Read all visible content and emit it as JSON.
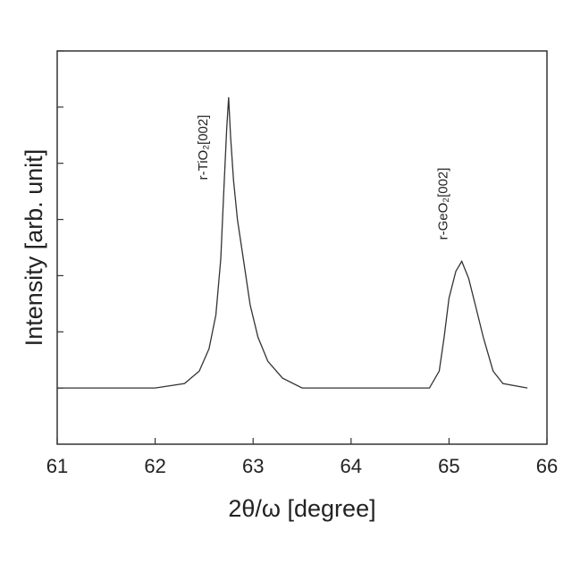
{
  "chart_data": {
    "type": "line",
    "xlabel": "2θ/ω [degree]",
    "ylabel": "Intensity [arb. unit]",
    "xlim": [
      61,
      66
    ],
    "xticks": [
      61,
      62,
      63,
      64,
      65,
      66
    ],
    "ylim": [
      0.1,
      1000000
    ],
    "yticks": [
      1,
      10,
      100,
      1000,
      10000,
      100000,
      1000000
    ],
    "ylog": true,
    "ytick_labels_shown": false,
    "series": [
      {
        "color": "#333333",
        "x": [
          61.0,
          62.0,
          62.3,
          62.45,
          62.55,
          62.62,
          62.67,
          62.7,
          62.73,
          62.75,
          62.77,
          62.8,
          62.84,
          62.9,
          62.97,
          63.05,
          63.15,
          63.3,
          63.5,
          64.8,
          64.9,
          64.95,
          65.0,
          65.07,
          65.13,
          65.2,
          65.28,
          65.35,
          65.45,
          65.55,
          65.8
        ],
        "values": [
          1,
          1,
          1.2,
          2,
          5,
          20,
          200,
          3000,
          40000,
          150000,
          30000,
          5000,
          1000,
          200,
          30,
          8,
          3,
          1.5,
          1,
          1,
          2,
          8,
          40,
          120,
          180,
          90,
          25,
          8,
          2,
          1.2,
          1
        ]
      }
    ],
    "annotations": [
      {
        "text": "r-TiO₂[002]",
        "x": 62.75
      },
      {
        "text": "r-GeO₂[002]",
        "x": 65.13
      }
    ]
  }
}
